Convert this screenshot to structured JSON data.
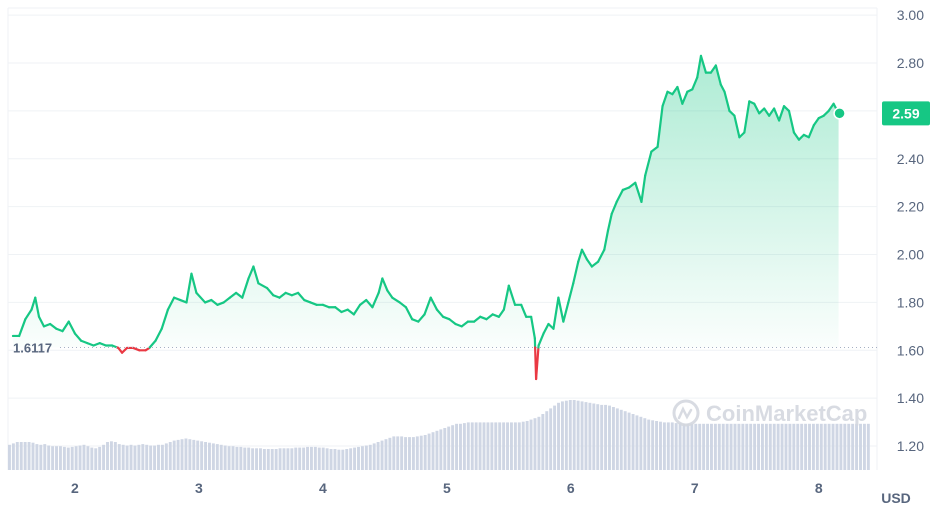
{
  "chart_data": {
    "type": "area",
    "title": "",
    "xlabel": "",
    "ylabel": "",
    "currency": "USD",
    "ylim": [
      1.1,
      3.03
    ],
    "y_ticks": [
      "3.00",
      "2.80",
      "2.60",
      "2.40",
      "2.20",
      "2.00",
      "1.80",
      "1.60",
      "1.40",
      "1.20"
    ],
    "xlim": [
      1.46,
      8.47
    ],
    "x_ticks": [
      "2",
      "3",
      "4",
      "5",
      "6",
      "7",
      "8"
    ],
    "open_value": 1.6117,
    "open_label": "1.6117",
    "last_value": 2.59,
    "last_label": "2.59",
    "grid": true,
    "colors": {
      "up": "#16c784",
      "down": "#ea3943",
      "area_top": "#16c784",
      "volume": "#cfd6e4",
      "grid": "#eff2f5",
      "axis_text": "#58667e"
    },
    "series": [
      {
        "values": [
          [
            1.5,
            1.66
          ],
          [
            1.55,
            1.66
          ],
          [
            1.6,
            1.73
          ],
          [
            1.65,
            1.77
          ],
          [
            1.68,
            1.82
          ],
          [
            1.71,
            1.74
          ],
          [
            1.75,
            1.7
          ],
          [
            1.8,
            1.71
          ],
          [
            1.85,
            1.69
          ],
          [
            1.9,
            1.68
          ],
          [
            1.95,
            1.72
          ],
          [
            2.0,
            1.67
          ],
          [
            2.05,
            1.64
          ],
          [
            2.1,
            1.63
          ],
          [
            2.15,
            1.62
          ],
          [
            2.2,
            1.63
          ],
          [
            2.25,
            1.62
          ],
          [
            2.3,
            1.62
          ],
          [
            2.35,
            1.61
          ],
          [
            2.38,
            1.59
          ],
          [
            2.42,
            1.61
          ],
          [
            2.47,
            1.61
          ],
          [
            2.52,
            1.6
          ],
          [
            2.57,
            1.6
          ],
          [
            2.6,
            1.61
          ],
          [
            2.65,
            1.64
          ],
          [
            2.7,
            1.69
          ],
          [
            2.75,
            1.77
          ],
          [
            2.8,
            1.82
          ],
          [
            2.85,
            1.81
          ],
          [
            2.9,
            1.8
          ],
          [
            2.94,
            1.92
          ],
          [
            2.98,
            1.84
          ],
          [
            3.05,
            1.8
          ],
          [
            3.1,
            1.81
          ],
          [
            3.15,
            1.79
          ],
          [
            3.2,
            1.8
          ],
          [
            3.25,
            1.82
          ],
          [
            3.3,
            1.84
          ],
          [
            3.35,
            1.82
          ],
          [
            3.4,
            1.9
          ],
          [
            3.44,
            1.95
          ],
          [
            3.48,
            1.88
          ],
          [
            3.55,
            1.86
          ],
          [
            3.6,
            1.83
          ],
          [
            3.65,
            1.82
          ],
          [
            3.7,
            1.84
          ],
          [
            3.75,
            1.83
          ],
          [
            3.8,
            1.84
          ],
          [
            3.85,
            1.81
          ],
          [
            3.9,
            1.8
          ],
          [
            3.95,
            1.79
          ],
          [
            4.0,
            1.79
          ],
          [
            4.05,
            1.78
          ],
          [
            4.1,
            1.78
          ],
          [
            4.15,
            1.76
          ],
          [
            4.2,
            1.77
          ],
          [
            4.25,
            1.75
          ],
          [
            4.3,
            1.79
          ],
          [
            4.35,
            1.81
          ],
          [
            4.4,
            1.78
          ],
          [
            4.45,
            1.84
          ],
          [
            4.48,
            1.9
          ],
          [
            4.52,
            1.85
          ],
          [
            4.56,
            1.82
          ],
          [
            4.62,
            1.8
          ],
          [
            4.67,
            1.78
          ],
          [
            4.72,
            1.73
          ],
          [
            4.77,
            1.72
          ],
          [
            4.82,
            1.75
          ],
          [
            4.87,
            1.82
          ],
          [
            4.92,
            1.77
          ],
          [
            4.97,
            1.74
          ],
          [
            5.02,
            1.73
          ],
          [
            5.07,
            1.71
          ],
          [
            5.12,
            1.7
          ],
          [
            5.17,
            1.72
          ],
          [
            5.22,
            1.72
          ],
          [
            5.27,
            1.74
          ],
          [
            5.32,
            1.73
          ],
          [
            5.37,
            1.75
          ],
          [
            5.42,
            1.74
          ],
          [
            5.46,
            1.77
          ],
          [
            5.5,
            1.87
          ],
          [
            5.55,
            1.79
          ],
          [
            5.6,
            1.79
          ],
          [
            5.64,
            1.74
          ],
          [
            5.68,
            1.74
          ],
          [
            5.71,
            1.65
          ],
          [
            5.72,
            1.48
          ],
          [
            5.74,
            1.62
          ],
          [
            5.78,
            1.67
          ],
          [
            5.82,
            1.71
          ],
          [
            5.86,
            1.69
          ],
          [
            5.9,
            1.82
          ],
          [
            5.94,
            1.72
          ],
          [
            5.98,
            1.8
          ],
          [
            6.02,
            1.88
          ],
          [
            6.06,
            1.97
          ],
          [
            6.09,
            2.02
          ],
          [
            6.13,
            1.98
          ],
          [
            6.17,
            1.95
          ],
          [
            6.22,
            1.97
          ],
          [
            6.27,
            2.02
          ],
          [
            6.3,
            2.1
          ],
          [
            6.33,
            2.17
          ],
          [
            6.37,
            2.22
          ],
          [
            6.42,
            2.27
          ],
          [
            6.47,
            2.28
          ],
          [
            6.52,
            2.3
          ],
          [
            6.57,
            2.22
          ],
          [
            6.6,
            2.33
          ],
          [
            6.65,
            2.43
          ],
          [
            6.7,
            2.45
          ],
          [
            6.74,
            2.62
          ],
          [
            6.78,
            2.68
          ],
          [
            6.82,
            2.67
          ],
          [
            6.86,
            2.7
          ],
          [
            6.9,
            2.63
          ],
          [
            6.94,
            2.68
          ],
          [
            6.98,
            2.69
          ],
          [
            7.02,
            2.74
          ],
          [
            7.05,
            2.83
          ],
          [
            7.09,
            2.76
          ],
          [
            7.13,
            2.76
          ],
          [
            7.17,
            2.79
          ],
          [
            7.21,
            2.71
          ],
          [
            7.24,
            2.68
          ],
          [
            7.28,
            2.6
          ],
          [
            7.32,
            2.58
          ],
          [
            7.36,
            2.49
          ],
          [
            7.4,
            2.51
          ],
          [
            7.44,
            2.64
          ],
          [
            7.48,
            2.63
          ],
          [
            7.52,
            2.59
          ],
          [
            7.56,
            2.61
          ],
          [
            7.6,
            2.58
          ],
          [
            7.64,
            2.61
          ],
          [
            7.68,
            2.56
          ],
          [
            7.72,
            2.62
          ],
          [
            7.76,
            2.6
          ],
          [
            7.8,
            2.51
          ],
          [
            7.84,
            2.48
          ],
          [
            7.88,
            2.5
          ],
          [
            7.92,
            2.49
          ],
          [
            7.96,
            2.54
          ],
          [
            8.0,
            2.57
          ],
          [
            8.04,
            2.58
          ],
          [
            8.08,
            2.6
          ],
          [
            8.12,
            2.63
          ],
          [
            8.16,
            2.59
          ]
        ]
      }
    ],
    "volume": {
      "x_start": 1.46,
      "x_end": 8.42,
      "values": [
        36,
        38,
        40,
        40,
        40,
        40,
        39,
        37,
        36,
        37,
        35,
        34,
        34,
        34,
        33,
        32,
        33,
        34,
        35,
        36,
        34,
        32,
        31,
        33,
        36,
        40,
        41,
        40,
        37,
        36,
        35,
        36,
        35,
        36,
        37,
        36,
        35,
        35,
        36,
        36,
        38,
        40,
        42,
        43,
        44,
        45,
        44,
        43,
        42,
        41,
        40,
        39,
        38,
        37,
        36,
        35,
        34,
        34,
        33,
        33,
        32,
        32,
        31,
        31,
        31,
        30,
        30,
        30,
        30,
        31,
        31,
        31,
        31,
        32,
        32,
        32,
        33,
        33,
        33,
        32,
        32,
        31,
        30,
        30,
        29,
        29,
        30,
        31,
        32,
        33,
        34,
        35,
        36,
        38,
        40,
        42,
        44,
        46,
        48,
        48,
        48,
        47,
        47,
        47,
        48,
        49,
        50,
        52,
        54,
        56,
        58,
        60,
        62,
        64,
        66,
        66,
        67,
        68,
        68,
        68,
        68,
        68,
        68,
        68,
        68,
        68,
        68,
        68,
        68,
        68,
        68,
        69,
        70,
        72,
        74,
        76,
        80,
        84,
        88,
        92,
        96,
        98,
        99,
        100,
        100,
        99,
        98,
        97,
        96,
        95,
        94,
        93,
        93,
        92,
        90,
        88,
        86,
        84,
        82,
        80,
        78,
        76,
        74,
        72,
        71,
        70,
        69,
        68,
        68,
        68,
        67,
        67,
        66,
        66,
        66,
        66,
        66,
        66,
        66,
        66,
        66,
        66,
        66,
        66,
        66,
        66,
        66,
        66,
        66,
        66,
        66,
        66,
        66,
        66,
        66,
        66,
        66,
        66,
        66,
        66,
        66,
        66,
        66,
        66,
        66,
        66,
        66,
        66,
        66,
        66,
        66,
        66,
        66,
        66,
        66,
        66,
        66,
        66,
        66,
        66
      ]
    }
  },
  "watermark": {
    "text": "CoinMarketCap",
    "icon": "coinmarketcap-logo-icon"
  }
}
